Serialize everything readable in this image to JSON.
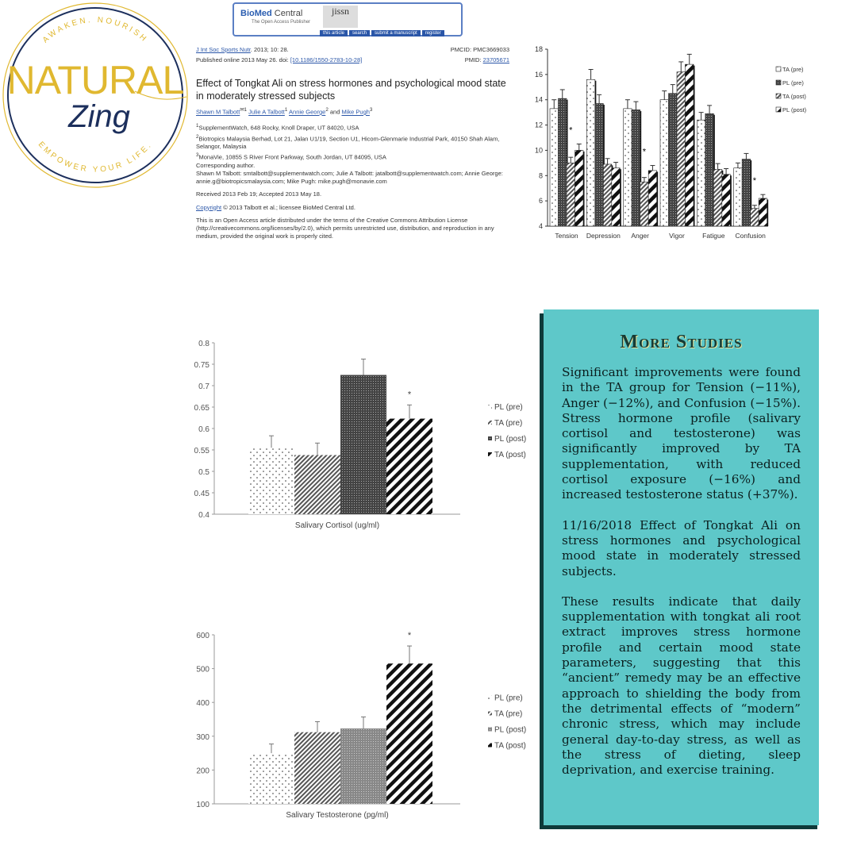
{
  "logo": {
    "brand": "NATURAL",
    "script": "Zing",
    "top_arc": "AWAKEN. NOURISH",
    "bottom_arc": "EMPOWER YOUR LIFE.",
    "gold": "#e0b830",
    "navy": "#1c2f5c"
  },
  "journal_header": {
    "publisher": "BioMed",
    "publisher2": "Central",
    "tagline": "The Open Access Publisher",
    "journal": "jissn",
    "nav": [
      "this article",
      "search",
      "submit a manuscript",
      "register"
    ]
  },
  "paper": {
    "citation_link": "J Int Soc Sports Nutr",
    "citation": ". 2013; 10: 28.",
    "pmcid": "PMCID: PMC3669033",
    "published": "Published online 2013 May 26. doi: ",
    "doi": "[10.1186/1550-2783-10-28]",
    "pmid_label": "PMID: ",
    "pmid": "23705671",
    "title": "Effect of Tongkat Ali on stress hormones and psychological mood state in moderately stressed subjects",
    "authors": [
      "Shawn M Talbott",
      "Julie A Talbott",
      "Annie George",
      "Mike Pugh"
    ],
    "affiliations": [
      "SupplementWatch, 648 Rocky, Knoll Draper, UT 84020, USA",
      "Biotropics Malaysia Berhad, Lot 21, Jalan U1/19, Section U1, Hicom-Glenmarie Industrial Park, 40150 Shah Alam, Selangor, Malaysia",
      "MonaVie, 10855 S River Front Parkway, South Jordan, UT 84095, USA"
    ],
    "corresponding": "Corresponding author.",
    "emails": "Shawn M Talbott: smtalbott@supplementwatch.com; Julie A Talbott: jatalbott@supplementwatch.com; Annie George: annie.g@biotropicsmalaysia.com; Mike Pugh: mike.pugh@monavie.com",
    "received": "Received 2013 Feb 19; Accepted 2013 May 18.",
    "copyright_link": "Copyright",
    "copyright": " © 2013 Talbott et al.; licensee BioMed Central Ltd.",
    "license": "This is an Open Access article distributed under the terms of the Creative Commons Attribution License (http://creativecommons.org/licenses/by/2.0), which permits unrestricted use, distribution, and reproduction in any medium, provided the original work is properly cited."
  },
  "more_studies": {
    "title": "More Studies",
    "paragraphs": [
      "Significant improvements were found in the TA group for Tension (−11%), Anger (−12%), and Confusion (−15%). Stress hormone profile (salivary cortisol and testosterone) was significantly improved by TA supplementation, with reduced cortisol exposure (−16%) and increased testosterone status (+37%).",
      "11/16/2018 Effect of Tongkat Ali on stress hormones and psychological mood state in moderately stressed subjects.",
      "These results indicate that daily supplementation with tongkat ali root extract improves stress hormone profile and certain mood state parameters, suggesting that this “ancient” remedy may be an effective approach to shielding the body from the detrimental effects of “modern” chronic stress, which may include general day-to-day stress, as well as the stress of dieting, sleep deprivation, and exercise training."
    ],
    "bg": "#5ec8c9",
    "shadow": "#0f3a3a"
  },
  "chart_data": [
    {
      "type": "bar",
      "categories": [
        "Tension",
        "Depression",
        "Anger",
        "Vigor",
        "Fatigue",
        "Confusion"
      ],
      "ylim": [
        4,
        18
      ],
      "yticks": [
        4,
        6,
        8,
        10,
        12,
        14,
        16,
        18
      ],
      "legend": "right",
      "series": [
        {
          "name": "TA (pre)",
          "values": [
            13.3,
            15.6,
            13.3,
            14.0,
            12.4,
            8.6
          ],
          "errors": [
            0.7,
            0.8,
            0.7,
            0.7,
            0.6,
            0.4
          ]
        },
        {
          "name": "PL (pre)",
          "values": [
            14.1,
            13.7,
            13.2,
            14.5,
            12.9,
            9.3
          ],
          "errors": [
            0.7,
            0.7,
            0.65,
            0.7,
            0.65,
            0.45
          ]
        },
        {
          "name": "TA (post)",
          "values": [
            9.0,
            8.9,
            7.5,
            16.2,
            8.5,
            5.4
          ],
          "errors": [
            0.45,
            0.45,
            0.35,
            0.8,
            0.45,
            0.25
          ]
        },
        {
          "name": "PL (post)",
          "values": [
            10.0,
            8.6,
            8.4,
            16.8,
            8.1,
            6.2
          ],
          "errors": [
            0.5,
            0.45,
            0.4,
            0.8,
            0.45,
            0.3
          ]
        }
      ],
      "significant": [
        "Tension",
        "Anger",
        "Confusion"
      ]
    },
    {
      "type": "bar",
      "xlabel": "Salivary Cortisol (ug/ml)",
      "ylim": [
        0.4,
        0.8
      ],
      "yticks": [
        "0.4",
        "0.45",
        "0.5",
        "0.55",
        "0.6",
        "0.65",
        "0.7",
        "0.75",
        "0.8"
      ],
      "legend": "right",
      "series": [
        {
          "name": "PL (pre)",
          "value": 0.555,
          "error": 0.028
        },
        {
          "name": "TA (pre)",
          "value": 0.538,
          "error": 0.028
        },
        {
          "name": "PL (post)",
          "value": 0.725,
          "error": 0.037
        },
        {
          "name": "TA (post)",
          "value": 0.623,
          "error": 0.032
        }
      ],
      "significant": [
        "TA (post)"
      ]
    },
    {
      "type": "bar",
      "xlabel": "Salivary Testosterone (pg/ml)",
      "ylim": [
        100,
        600
      ],
      "yticks": [
        "100",
        "200",
        "300",
        "400",
        "500",
        "600"
      ],
      "legend": "right",
      "series": [
        {
          "name": "PL (pre)",
          "value": 250,
          "error": 27
        },
        {
          "name": "TA (pre)",
          "value": 312,
          "error": 31
        },
        {
          "name": "PL (post)",
          "value": 323,
          "error": 34
        },
        {
          "name": "TA (post)",
          "value": 515,
          "error": 52
        }
      ],
      "significant": [
        "TA (post)"
      ]
    }
  ]
}
